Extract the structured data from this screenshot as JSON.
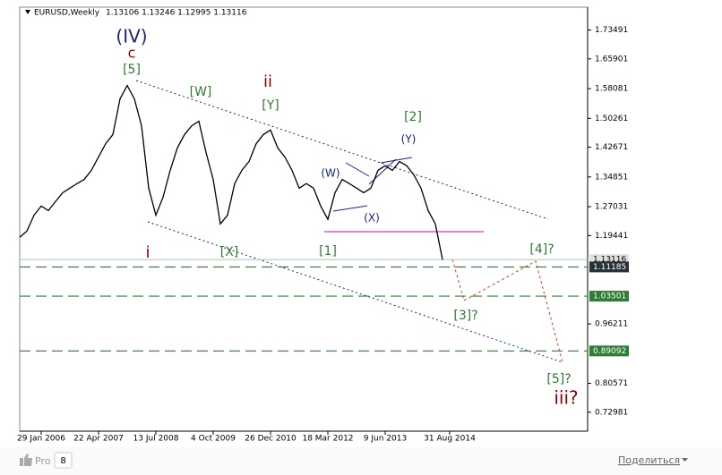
{
  "chart_data": {
    "type": "line",
    "title": "EURUSD,Weekly",
    "subtitle": "1.13106 1.13246 1.12995 1.13116",
    "categories": [
      null,
      null,
      null,
      "29 Jan 2006",
      null,
      null,
      null,
      null,
      null,
      null,
      null,
      "22 Apr 2007",
      null,
      null,
      null,
      null,
      null,
      null,
      null,
      "13 Jul 2008",
      null,
      null,
      null,
      null,
      null,
      null,
      null,
      "4 Oct 2009",
      null,
      null,
      null,
      null,
      null,
      null,
      null,
      "26 Dec 2010",
      null,
      null,
      null,
      null,
      null,
      null,
      null,
      "18 Mar 2012",
      null,
      null,
      null,
      null,
      null,
      null,
      null,
      "9 Jun 2013",
      null,
      null,
      null,
      null,
      null,
      null,
      null,
      null,
      "31 Aug 2014",
      null,
      null,
      null,
      null,
      null,
      null,
      null,
      null,
      null,
      null,
      null,
      null,
      null,
      null,
      null,
      null,
      null,
      null,
      null
    ],
    "values": [
      1.19,
      1.206,
      1.248,
      1.272,
      1.26,
      1.284,
      1.307,
      1.319,
      1.331,
      1.342,
      1.366,
      1.401,
      1.436,
      1.46,
      1.554,
      1.589,
      1.554,
      1.483,
      1.319,
      1.248,
      1.295,
      1.366,
      1.425,
      1.46,
      1.483,
      1.495,
      1.413,
      1.342,
      1.225,
      1.248,
      1.331,
      1.366,
      1.389,
      1.436,
      1.46,
      1.472,
      1.425,
      1.401,
      1.366,
      1.319,
      1.331,
      1.319,
      1.272,
      1.237,
      1.307,
      1.342,
      1.331,
      1.319,
      1.307,
      1.319,
      1.366,
      1.378,
      1.366,
      1.389,
      1.378,
      1.354,
      1.319,
      1.26,
      1.225,
      1.131,
      null,
      null,
      null,
      null,
      null,
      null,
      null,
      null,
      null,
      null,
      null,
      null,
      null,
      null,
      null,
      null,
      null,
      null,
      null,
      null
    ],
    "color": "#000000",
    "ylim": [
      0.68,
      1.795
    ],
    "yticks": [
      1.73491,
      1.65901,
      1.58081,
      1.50261,
      1.42671,
      1.34851,
      1.27031,
      1.19441,
      0.96211,
      0.80571,
      0.72981
    ],
    "current_price": 1.13116,
    "levels": [
      1.11185,
      1.03501,
      0.89092
    ],
    "level_color": "#2e7d32",
    "annotations": [
      {
        "text": "(IV)",
        "color": "#1a237e"
      },
      {
        "text": "c",
        "color": "#8b0000"
      },
      {
        "text": "[5]",
        "color": "#2e7d32"
      },
      {
        "text": "[W]",
        "color": "#2e7d32"
      },
      {
        "text": "ii",
        "color": "#8b0000"
      },
      {
        "text": "[Y]",
        "color": "#2e7d32"
      },
      {
        "text": "[2]",
        "color": "#2e7d32"
      },
      {
        "text": "(Y)",
        "color": "#1a237e"
      },
      {
        "text": "(W)",
        "color": "#1a237e"
      },
      {
        "text": "(X)",
        "color": "#1a237e"
      },
      {
        "text": "i",
        "color": "#8b0000"
      },
      {
        "text": "[X]",
        "color": "#2e7d32"
      },
      {
        "text": "[1]",
        "color": "#2e7d32"
      },
      {
        "text": "[4]?",
        "color": "#2e7d32"
      },
      {
        "text": "[3]?",
        "color": "#2e7d32"
      },
      {
        "text": "[5]?",
        "color": "#2e7d32"
      },
      {
        "text": "iii?",
        "color": "#8b0000"
      }
    ]
  },
  "footer": {
    "pro": "Pro",
    "count": "8",
    "share": "Поделиться"
  }
}
